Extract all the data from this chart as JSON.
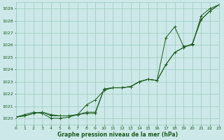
{
  "xlabel": "Graphe pression niveau de la mer (hPa)",
  "ylim": [
    1019.5,
    1029.5
  ],
  "xlim": [
    0,
    23
  ],
  "yticks": [
    1020,
    1021,
    1022,
    1023,
    1024,
    1025,
    1026,
    1027,
    1028,
    1029
  ],
  "xticks": [
    0,
    1,
    2,
    3,
    4,
    5,
    6,
    7,
    8,
    9,
    10,
    11,
    12,
    13,
    14,
    15,
    16,
    17,
    18,
    19,
    20,
    21,
    22,
    23
  ],
  "background_color": "#cce8e8",
  "grid_color": "#99ccbb",
  "line_color": "#1a5c1a",
  "series": [
    [
      1020.1,
      1020.2,
      1020.4,
      1020.5,
      1020.3,
      1020.2,
      1020.2,
      1020.3,
      1020.5,
      1020.5,
      1022.4,
      1022.5,
      1022.5,
      1022.6,
      1023.0,
      1023.2,
      1023.1,
      1024.4,
      1025.4,
      1025.8,
      1026.1,
      1028.1,
      1028.8,
      1029.3
    ],
    [
      1020.1,
      1020.2,
      1020.4,
      1020.5,
      1020.2,
      1020.2,
      1020.2,
      1020.3,
      1021.1,
      1021.5,
      1022.3,
      1022.5,
      1022.5,
      1022.6,
      1023.0,
      1023.2,
      1023.1,
      1026.6,
      1027.5,
      1025.9,
      1026.0,
      1028.4,
      1029.0,
      1029.3
    ],
    [
      1020.1,
      1020.3,
      1020.5,
      1020.4,
      1020.0,
      1020.0,
      1020.1,
      1020.3,
      1020.4,
      1020.4,
      1022.4,
      1022.5,
      1022.5,
      1022.6,
      1023.0,
      1023.2,
      1023.1,
      1024.4,
      1025.4,
      1025.8,
      1026.1,
      1028.1,
      1028.8,
      1029.3
    ]
  ]
}
